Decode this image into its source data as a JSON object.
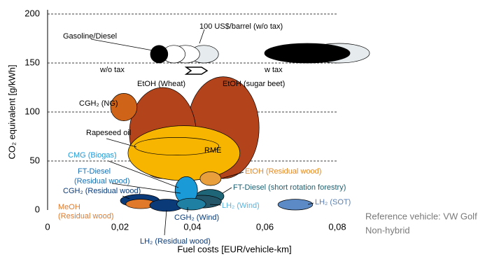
{
  "chart_data": {
    "type": "ellipse",
    "x_label": "Fuel costs [EUR/vehicle-km]",
    "y_label": "CO₂ equivalent [g/kWh]",
    "xlim": [
      0,
      0.08
    ],
    "ylim": [
      0,
      200
    ],
    "xticks": [
      0,
      {
        "value": 0.02,
        "label": "0,02"
      },
      {
        "value": 0.04,
        "label": "0,04"
      },
      {
        "value": 0.06,
        "label": "0,06"
      },
      {
        "value": 0.08,
        "label": "0,08"
      }
    ],
    "yticks": [
      0,
      50,
      100,
      150,
      200
    ],
    "grid": true,
    "series": [
      {
        "color": "#b3431b",
        "x": [
          0.0386,
          0.0584
        ],
        "y": [
          32,
          136
        ]
      },
      {
        "color": "#b3431b",
        "x": [
          0.0226,
          0.041
        ],
        "y": [
          32,
          125
        ]
      },
      {
        "color": "#cf6418",
        "x": [
          0.0174,
          0.0247
        ],
        "y": [
          91,
          119
        ]
      },
      {
        "color": "#f7b500",
        "x": [
          0.0222,
          0.0531
        ],
        "y": [
          30,
          86
        ]
      },
      {
        "color": "#f7b500",
        "x": [
          0.024,
          0.0473
        ],
        "y": [
          56,
          74
        ]
      },
      {
        "color": "#e9a03c",
        "x": [
          0.0421,
          0.0479
        ],
        "y": [
          25,
          39
        ]
      },
      {
        "color": "#1d6577",
        "x": [
          0.041,
          0.0487
        ],
        "y": [
          7,
          21
        ]
      },
      {
        "color": "#24566a",
        "x": [
          0.037,
          0.048
        ],
        "y": [
          2,
          15
        ]
      },
      {
        "color": "#1b9ad8",
        "x": [
          0.0352,
          0.0414
        ],
        "y": [
          6,
          34
        ]
      },
      {
        "color": "#0b3a78",
        "x": [
          0.0201,
          0.0309
        ],
        "y": [
          3,
          16
        ]
      },
      {
        "color": "#e07a2a",
        "x": [
          0.0216,
          0.0298
        ],
        "y": [
          1.4,
          11
        ]
      },
      {
        "color": "#0b3a78",
        "x": [
          0.0282,
          0.0375
        ],
        "y": [
          -1.4,
          11
        ]
      },
      {
        "color": "#1f80a3",
        "x": [
          0.0357,
          0.0437
        ],
        "y": [
          0,
          12
        ]
      },
      {
        "color": "#5b8ac6",
        "x": [
          0.0636,
          0.0732
        ],
        "y": [
          0,
          11
        ]
      },
      {
        "color": "#e6ebee",
        "x": [
          0.0391,
          0.0472
        ],
        "y": [
          150,
          168
        ]
      },
      {
        "color": "#ffffff",
        "x": [
          0.0342,
          0.042
        ],
        "y": [
          150,
          168
        ]
      },
      {
        "color": "#ffffff",
        "x": [
          0.0317,
          0.038
        ],
        "y": [
          150,
          168
        ]
      },
      {
        "color": "#000000",
        "x": [
          0.0284,
          0.0332
        ],
        "y": [
          150,
          168
        ]
      },
      {
        "color": "#e6ebee",
        "x": [
          0.0719,
          0.0889
        ],
        "y": [
          150,
          170
        ]
      },
      {
        "color": "#000000",
        "x": [
          0.0599,
          0.0835
        ],
        "y": [
          150,
          170
        ]
      }
    ],
    "annotations": [
      {
        "text": "Gasoline/Diesel",
        "color": "#000000"
      },
      {
        "text": "100 US$/barrel (w/o tax)",
        "color": "#000000"
      },
      {
        "text": "w/o tax",
        "color": "#000000"
      },
      {
        "text": "w tax",
        "color": "#000000"
      },
      {
        "text": "EtOH (Wheat)",
        "color": "#000000"
      },
      {
        "text": "EtOH (sugar beet)",
        "color": "#000000"
      },
      {
        "text": "CGH₂ (NG)",
        "color": "#000000"
      },
      {
        "text": "Rapeseed oil",
        "color": "#000000"
      },
      {
        "text": "RME",
        "color": "#000000"
      },
      {
        "text": "CMG (Biogas)",
        "color": "#1b9ad8"
      },
      {
        "text": "FT-Diesel",
        "color": "#1b6fb0"
      },
      {
        "text": "(Residual wood)",
        "color": "#1b6fb0"
      },
      {
        "text": "EtOH (Residual wood)",
        "color": "#e08a2a"
      },
      {
        "text": "CGH₂ (Residual wood)",
        "color": "#0b3a78"
      },
      {
        "text": "FT-Diesel (short rotation forestry)",
        "color": "#1d5f70"
      },
      {
        "text": "MeOH",
        "color": "#e07a2a"
      },
      {
        "text": "(Residual wood)",
        "color": "#e07a2a"
      },
      {
        "text": "LH₂ (Wind)",
        "color": "#5fb4dc"
      },
      {
        "text": "LH₂ (SOT)",
        "color": "#5b7fb0"
      },
      {
        "text": "CGH₂ (Wind)",
        "color": "#0b3a78"
      },
      {
        "text": "LH₂ (Residual wood)",
        "color": "#0b3a78"
      },
      {
        "text": "Reference vehicle: VW Golf",
        "color": "#7a7a7a"
      },
      {
        "text": "Non-hybrid",
        "color": "#7a7a7a"
      }
    ]
  }
}
